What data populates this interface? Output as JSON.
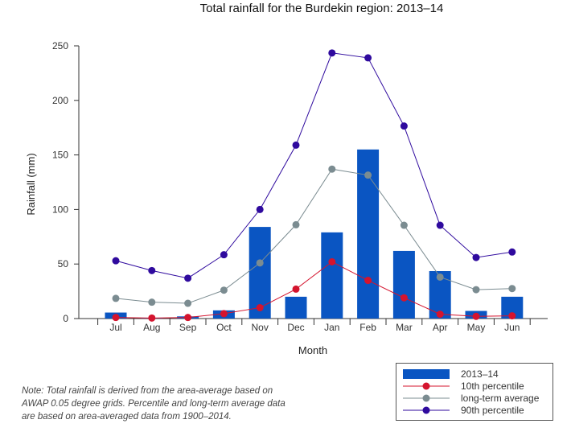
{
  "chart_data": {
    "type": "bar",
    "title": "Total rainfall for the Burdekin region: 2013–14",
    "xlabel": "Month",
    "ylabel": "Rainfall (mm)",
    "ylim": [
      0,
      250
    ],
    "yticks": [
      0,
      50,
      100,
      150,
      200,
      250
    ],
    "grid": false,
    "legend_position": "bottom-right",
    "categories": [
      "Jul",
      "Aug",
      "Sep",
      "Oct",
      "Nov",
      "Dec",
      "Jan",
      "Feb",
      "Mar",
      "Apr",
      "May",
      "Jun"
    ],
    "series": [
      {
        "name": "2013–14",
        "type": "bar",
        "color": "#0a55c2",
        "values": [
          5.5,
          0.3,
          2,
          7.5,
          84,
          20,
          79,
          155,
          62,
          43.5,
          7,
          20
        ]
      },
      {
        "name": "10th percentile",
        "type": "line",
        "color": "#d4142e",
        "values": [
          1,
          0.5,
          1,
          4.5,
          10,
          27,
          52,
          35,
          19,
          4,
          2,
          2.5
        ]
      },
      {
        "name": "long-term average",
        "type": "line",
        "color": "#7b8c91",
        "values": [
          18.5,
          15,
          14,
          26,
          51,
          86,
          137,
          131.5,
          85.5,
          38,
          26.5,
          27.5
        ]
      },
      {
        "name": "90th percentile",
        "type": "line",
        "color": "#2f0a9e",
        "values": [
          53,
          44,
          37,
          58.5,
          100,
          159,
          243.5,
          239,
          176.5,
          85.5,
          56,
          61
        ]
      }
    ]
  },
  "note": {
    "line1": "Note: Total rainfall is derived from the area-average based on",
    "line2": "AWAP 0.05 degree grids. Percentile and long-term average data",
    "line3": "are based on area-averaged data from 1900–2014."
  }
}
